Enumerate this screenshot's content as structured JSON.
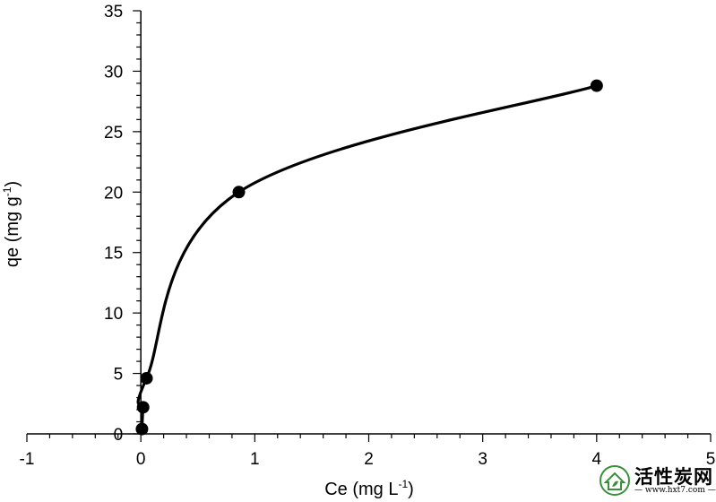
{
  "chart_data": {
    "type": "scatter",
    "xlabel": "Ce (mg L",
    "xlabel_sup": "-1",
    "xlabel_close": ")",
    "ylabel": "qe (mg g",
    "ylabel_sup": "-1",
    "ylabel_close": ")",
    "xlim": [
      -1,
      5
    ],
    "ylim": [
      0,
      35
    ],
    "xticks": [
      "-1",
      "0",
      "1",
      "2",
      "3",
      "4",
      "5"
    ],
    "yticks": [
      "0",
      "5",
      "10",
      "15",
      "20",
      "25",
      "30",
      "35"
    ],
    "series": [
      {
        "points": [
          {
            "x": 0.01,
            "y": 0.4
          },
          {
            "x": 0.02,
            "y": 2.2
          },
          {
            "x": 0.05,
            "y": 4.6
          },
          {
            "x": 0.86,
            "y": 20.0
          },
          {
            "x": 4.0,
            "y": 28.8
          }
        ],
        "color": "#000000",
        "smooth_line": true
      }
    ],
    "grid": false,
    "legend": "none"
  },
  "watermark": {
    "text": "活性炭网",
    "url": "www.hxt7.com",
    "color": "#3a8f3a"
  }
}
